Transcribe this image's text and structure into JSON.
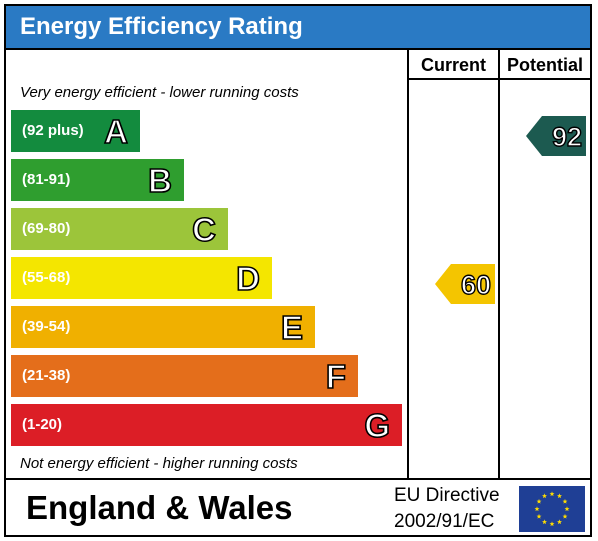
{
  "title": "Energy Efficiency Rating",
  "columns": {
    "current": "Current",
    "potential": "Potential"
  },
  "top_note": "Very energy efficient - lower running costs",
  "bottom_note": "Not energy efficient - higher running costs",
  "bands": [
    {
      "range": "(92 plus)",
      "letter": "A",
      "color": "#138b3e"
    },
    {
      "range": "(81-91)",
      "letter": "B",
      "color": "#2f9e2f"
    },
    {
      "range": "(69-80)",
      "letter": "C",
      "color": "#9cc53a"
    },
    {
      "range": "(55-68)",
      "letter": "D",
      "color": "#f4e600"
    },
    {
      "range": "(39-54)",
      "letter": "E",
      "color": "#f0b000"
    },
    {
      "range": "(21-38)",
      "letter": "F",
      "color": "#e46e1b"
    },
    {
      "range": "(1-20)",
      "letter": "G",
      "color": "#dc1e26"
    }
  ],
  "current_rating": {
    "value": "60",
    "band": "D",
    "color": "#f4c500"
  },
  "potential_rating": {
    "value": "92",
    "band": "A",
    "color": "#1c5a50"
  },
  "footer": {
    "region": "England & Wales",
    "directive_line1": "EU Directive",
    "directive_line2": "2002/91/EC"
  },
  "colors": {
    "title_bar": "#2a7ac4",
    "eu_flag_blue": "#1f3f95",
    "eu_flag_stars": "#ffdd00"
  }
}
